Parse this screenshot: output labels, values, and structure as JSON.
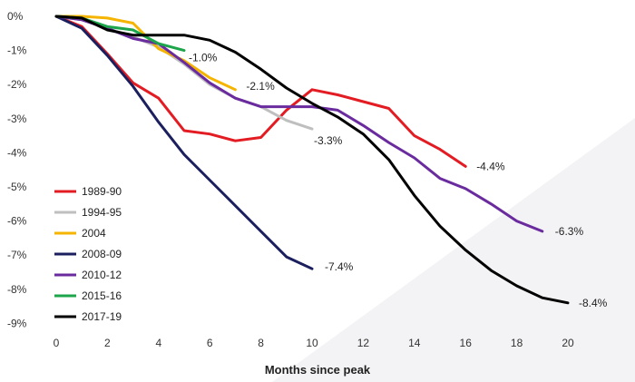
{
  "chart_data": {
    "type": "line",
    "title": "",
    "xlabel": "Months since peak",
    "ylabel": "",
    "xlim": [
      0,
      21
    ],
    "ylim": [
      -9,
      0
    ],
    "x_ticks": [
      0,
      2,
      4,
      6,
      8,
      10,
      12,
      14,
      16,
      18,
      20
    ],
    "y_ticks": [
      0,
      -1,
      -2,
      -3,
      -4,
      -5,
      -6,
      -7,
      -8,
      -9
    ],
    "y_tick_labels": [
      "0%",
      "-1%",
      "-2%",
      "-3%",
      "-4%",
      "-5%",
      "-6%",
      "-7%",
      "-8%",
      "-9%"
    ],
    "grid": false,
    "legend_position": "bottom-left",
    "series": [
      {
        "name": "1989-90",
        "color": "#e31c23",
        "x": [
          0,
          1,
          2,
          3,
          4,
          5,
          6,
          7,
          8,
          9,
          10,
          11,
          12,
          13,
          14,
          15,
          16
        ],
        "values": [
          0,
          -0.3,
          -1.1,
          -1.95,
          -2.4,
          -3.35,
          -3.45,
          -3.65,
          -3.55,
          -2.75,
          -2.15,
          -2.3,
          -2.5,
          -2.7,
          -3.5,
          -3.9,
          -4.4
        ],
        "end_label": "-4.4%"
      },
      {
        "name": "1994-95",
        "color": "#bfbfbf",
        "x": [
          0,
          1,
          2,
          3,
          4,
          5,
          6,
          7,
          8,
          9,
          10
        ],
        "values": [
          0,
          -0.1,
          -0.35,
          -0.6,
          -0.9,
          -1.4,
          -2.0,
          -2.4,
          -2.65,
          -3.05,
          -3.3
        ],
        "end_label": "-3.3%"
      },
      {
        "name": "2004",
        "color": "#f4b400",
        "x": [
          0,
          1,
          2,
          3,
          4,
          5,
          6,
          7
        ],
        "values": [
          0,
          0,
          -0.05,
          -0.2,
          -0.95,
          -1.3,
          -1.8,
          -2.15
        ],
        "end_label": "-2.1%"
      },
      {
        "name": "2008-09",
        "color": "#1b1f5e",
        "x": [
          0,
          1,
          2,
          3,
          4,
          5,
          6,
          7,
          8,
          9,
          10
        ],
        "values": [
          0,
          -0.35,
          -1.15,
          -2.05,
          -3.1,
          -4.05,
          -4.8,
          -5.55,
          -6.3,
          -7.05,
          -7.4
        ],
        "end_label": "-7.4%"
      },
      {
        "name": "2010-12",
        "color": "#6a2b9e",
        "x": [
          0,
          1,
          2,
          3,
          4,
          5,
          6,
          7,
          8,
          9,
          10,
          11,
          12,
          13,
          14,
          15,
          16,
          17,
          18,
          19
        ],
        "values": [
          0,
          -0.1,
          -0.35,
          -0.65,
          -0.8,
          -1.35,
          -1.95,
          -2.4,
          -2.65,
          -2.65,
          -2.65,
          -2.75,
          -3.2,
          -3.7,
          -4.15,
          -4.75,
          -5.05,
          -5.5,
          -6.0,
          -6.3
        ],
        "end_label": "-6.3%"
      },
      {
        "name": "2015-16",
        "color": "#1ca54a",
        "x": [
          0,
          1,
          2,
          3,
          4,
          5
        ],
        "values": [
          0,
          -0.05,
          -0.3,
          -0.4,
          -0.8,
          -1.0
        ],
        "end_label": "-1.0%"
      },
      {
        "name": "2017-19",
        "color": "#000000",
        "x": [
          0,
          1,
          2,
          3,
          4,
          5,
          6,
          7,
          8,
          9,
          10,
          11,
          12,
          13,
          14,
          15,
          16,
          17,
          18,
          19,
          20
        ],
        "values": [
          0,
          -0.05,
          -0.4,
          -0.55,
          -0.55,
          -0.55,
          -0.7,
          -1.05,
          -1.55,
          -2.1,
          -2.55,
          -2.95,
          -3.45,
          -4.2,
          -5.25,
          -6.15,
          -6.85,
          -7.45,
          -7.9,
          -8.25,
          -8.4
        ],
        "end_label": "-8.4%"
      }
    ]
  }
}
